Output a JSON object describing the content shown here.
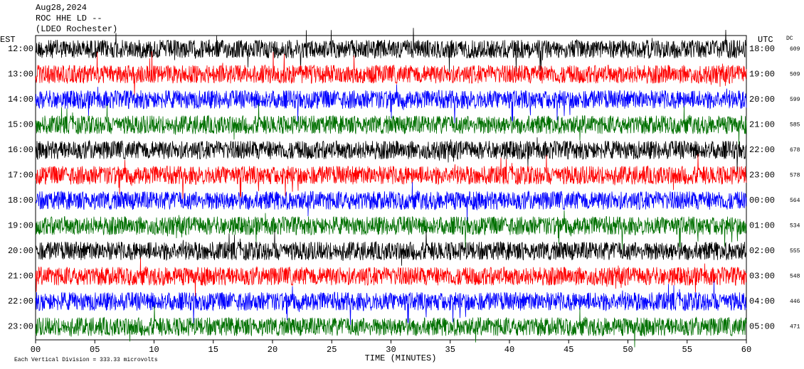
{
  "chart_data": {
    "type": "helicorder",
    "title_lines": [
      "Aug28,2024",
      "ROC HHE LD --",
      "(LDEO Rochester)"
    ],
    "left_axis_title": "EST",
    "right_axis_title": "UTC",
    "dc_title": "DC",
    "x_label": "TIME (MINUTES)",
    "footnote": "Each Vertical Division =  333.33 microvolts",
    "xlim": [
      0,
      60
    ],
    "xticks": [
      {
        "value": 0,
        "label": "00"
      },
      {
        "value": 5,
        "label": "05"
      },
      10,
      15,
      20,
      25,
      30,
      35,
      40,
      45,
      50,
      55,
      60
    ],
    "rows": [
      {
        "est": "12:00",
        "utc": "18:00",
        "dc": "609",
        "color": "#000000"
      },
      {
        "est": "13:00",
        "utc": "19:00",
        "dc": "509",
        "color": "#ff0000"
      },
      {
        "est": "14:00",
        "utc": "20:00",
        "dc": "599",
        "color": "#0000ff"
      },
      {
        "est": "15:00",
        "utc": "21:00",
        "dc": "585",
        "color": "#007000"
      },
      {
        "est": "16:00",
        "utc": "22:00",
        "dc": "678",
        "color": "#000000"
      },
      {
        "est": "17:00",
        "utc": "23:00",
        "dc": "578",
        "color": "#ff0000"
      },
      {
        "est": "18:00",
        "utc": "00:00",
        "dc": "564",
        "color": "#0000ff"
      },
      {
        "est": "19:00",
        "utc": "01:00",
        "dc": "534",
        "color": "#007000"
      },
      {
        "est": "20:00",
        "utc": "02:00",
        "dc": "555",
        "color": "#000000"
      },
      {
        "est": "21:00",
        "utc": "03:00",
        "dc": "548",
        "color": "#ff0000"
      },
      {
        "est": "22:00",
        "utc": "04:00",
        "dc": "446",
        "color": "#0000ff"
      },
      {
        "est": "23:00",
        "utc": "05:00",
        "dc": "471",
        "color": "#007000"
      }
    ]
  }
}
